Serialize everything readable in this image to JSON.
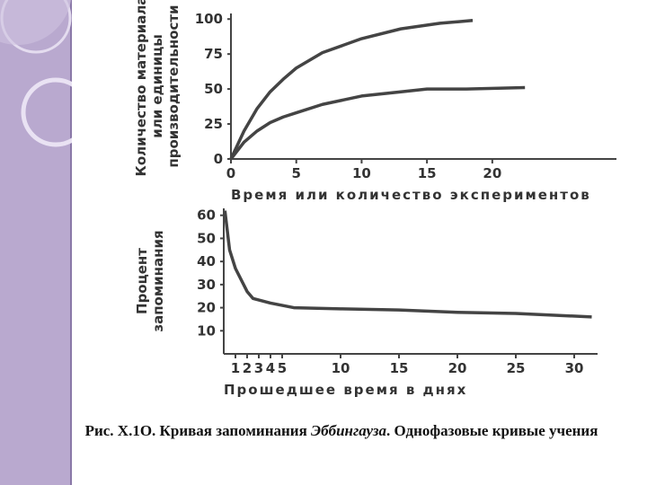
{
  "chart_data": [
    {
      "type": "line",
      "ylabel": [
        "Количество материала",
        "или единицы",
        "производительности"
      ],
      "xlabel": "Время или количество экспериментов",
      "x": [
        0,
        1,
        2,
        3,
        4,
        5,
        7,
        10,
        13,
        15,
        16,
        18,
        18.5,
        22.5
      ],
      "series": [
        {
          "color": "#444",
          "values": [
            0,
            20,
            36,
            48,
            57,
            65,
            76,
            86,
            93,
            null,
            97,
            null,
            99,
            null
          ]
        },
        {
          "color": "#444",
          "values": [
            0,
            12,
            20,
            26,
            30,
            33,
            39,
            45,
            48,
            50,
            null,
            50,
            null,
            51
          ]
        }
      ],
      "xlim": [
        0,
        29.5
      ],
      "ylim": [
        0,
        104
      ],
      "xticks": [
        0,
        5,
        10,
        15,
        20
      ],
      "yticks": [
        0,
        25,
        50,
        75,
        100
      ]
    },
    {
      "type": "line",
      "ylabel": [
        "Процент",
        "запоминания"
      ],
      "xlabel": "Прошедшее время в днях",
      "x": [
        0.1,
        0.5,
        1,
        2,
        2.5,
        4,
        6,
        10,
        15,
        20,
        25,
        31.5
      ],
      "series": [
        {
          "color": "#444",
          "values": [
            62,
            45,
            37,
            27,
            24,
            22,
            20,
            19.5,
            19,
            18,
            17.5,
            16
          ]
        }
      ],
      "xlim": [
        0,
        32
      ],
      "ylim": [
        0,
        63
      ],
      "xticks": [
        1,
        2,
        3,
        4,
        5,
        10,
        15,
        20,
        25,
        30
      ],
      "yticks": [
        10,
        20,
        30,
        40,
        50,
        60
      ]
    }
  ],
  "caption": {
    "prefix": "Рис. Х.1О. Кривая запоминания ",
    "name": "Эббингауза",
    "suffix": ". Однофазовые кривые учения"
  }
}
